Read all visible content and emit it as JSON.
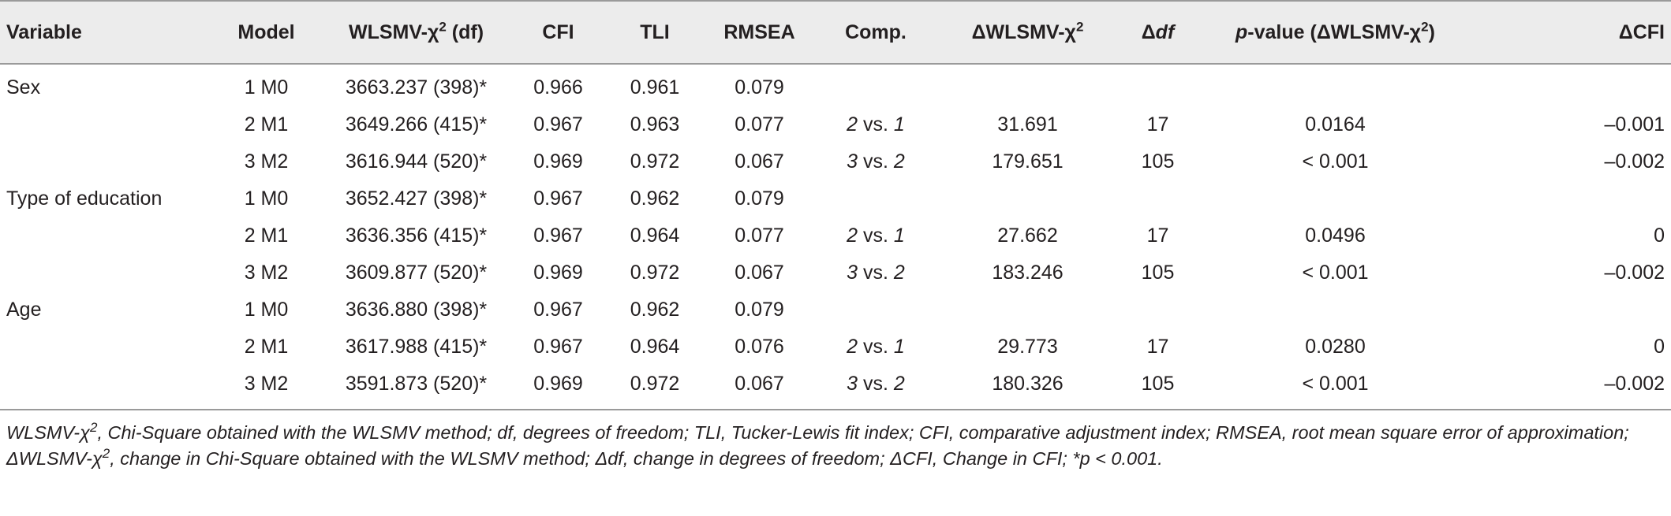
{
  "headers": {
    "variable": "Variable",
    "model": "Model",
    "wlsmv": "WLSMV-χ",
    "wlsmv_sup": "2",
    "wlsmv_suffix": " (df)",
    "cfi": "CFI",
    "tli": "TLI",
    "rmsea": "RMSEA",
    "comp": "Comp.",
    "dwlsmv": "ΔWLSMV-χ",
    "dwlsmv_sup": "2",
    "ddf_delta": "Δ",
    "ddf_it": "df",
    "pval_it": "p",
    "pval_mid": "-value (ΔWLSMV-χ",
    "pval_sup": "2",
    "pval_end": ")",
    "dcfi": "ΔCFI"
  },
  "rows": [
    {
      "variable": "Sex",
      "model": "1 M0",
      "wlsmv": "3663.237 (398)*",
      "cfi": "0.966",
      "tli": "0.961",
      "rmsea": "0.079",
      "comp_a": "",
      "comp_vs": "",
      "comp_b": "",
      "dchi": "",
      "ddf": "",
      "p": "",
      "dcfi": ""
    },
    {
      "variable": "",
      "model": "2 M1",
      "wlsmv": "3649.266 (415)*",
      "cfi": "0.967",
      "tli": "0.963",
      "rmsea": "0.077",
      "comp_a": "2",
      "comp_vs": " vs. ",
      "comp_b": "1",
      "dchi": "31.691",
      "ddf": "17",
      "p": "0.0164",
      "dcfi": "–0.001"
    },
    {
      "variable": "",
      "model": "3 M2",
      "wlsmv": "3616.944 (520)*",
      "cfi": "0.969",
      "tli": "0.972",
      "rmsea": "0.067",
      "comp_a": "3",
      "comp_vs": " vs. ",
      "comp_b": "2",
      "dchi": "179.651",
      "ddf": "105",
      "p": "< 0.001",
      "dcfi": "–0.002"
    },
    {
      "variable": "Type of education",
      "model": "1 M0",
      "wlsmv": "3652.427 (398)*",
      "cfi": "0.967",
      "tli": "0.962",
      "rmsea": "0.079",
      "comp_a": "",
      "comp_vs": "",
      "comp_b": "",
      "dchi": "",
      "ddf": "",
      "p": "",
      "dcfi": ""
    },
    {
      "variable": "",
      "model": "2 M1",
      "wlsmv": "3636.356 (415)*",
      "cfi": "0.967",
      "tli": "0.964",
      "rmsea": "0.077",
      "comp_a": "2",
      "comp_vs": " vs. ",
      "comp_b": "1",
      "dchi": "27.662",
      "ddf": "17",
      "p": "0.0496",
      "dcfi": "0"
    },
    {
      "variable": "",
      "model": "3 M2",
      "wlsmv": "3609.877 (520)*",
      "cfi": "0.969",
      "tli": "0.972",
      "rmsea": "0.067",
      "comp_a": "3",
      "comp_vs": " vs. ",
      "comp_b": "2",
      "dchi": "183.246",
      "ddf": "105",
      "p": "< 0.001",
      "dcfi": "–0.002"
    },
    {
      "variable": "Age",
      "model": "1 M0",
      "wlsmv": "3636.880 (398)*",
      "cfi": "0.967",
      "tli": "0.962",
      "rmsea": "0.079",
      "comp_a": "",
      "comp_vs": "",
      "comp_b": "",
      "dchi": "",
      "ddf": "",
      "p": "",
      "dcfi": ""
    },
    {
      "variable": "",
      "model": "2 M1",
      "wlsmv": "3617.988 (415)*",
      "cfi": "0.967",
      "tli": "0.964",
      "rmsea": "0.076",
      "comp_a": "2",
      "comp_vs": " vs. ",
      "comp_b": "1",
      "dchi": "29.773",
      "ddf": "17",
      "p": "0.0280",
      "dcfi": "0"
    },
    {
      "variable": "",
      "model": "3 M2",
      "wlsmv": "3591.873 (520)*",
      "cfi": "0.969",
      "tli": "0.972",
      "rmsea": "0.067",
      "comp_a": "3",
      "comp_vs": " vs. ",
      "comp_b": "2",
      "dchi": "180.326",
      "ddf": "105",
      "p": "< 0.001",
      "dcfi": "–0.002"
    }
  ],
  "footnote": {
    "t1": "WLSMV-χ",
    "t1_sup": "2",
    "t2": ", Chi-Square obtained with the WLSMV method; df, degrees of freedom; TLI, Tucker-Lewis fit index; CFI, comparative adjustment index; RMSEA, root mean square error of approximation; ΔWLSMV-χ",
    "t2_sup": "2",
    "t3": ", change in Chi-Square obtained with the WLSMV method; Δdf, change in degrees of freedom; ΔCFI, Change in CFI; *p < 0.001."
  }
}
